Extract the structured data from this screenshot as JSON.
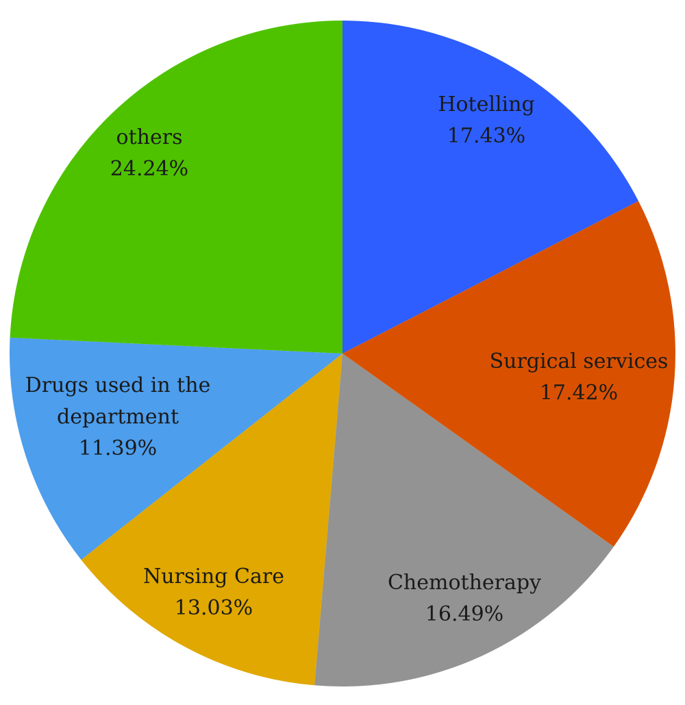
{
  "chart_data": {
    "type": "pie",
    "title": "",
    "slices": [
      {
        "label_lines": [
          "Hotelling"
        ],
        "value": 17.43,
        "value_label": "17.43%",
        "color": "#2e5eff"
      },
      {
        "label_lines": [
          "Surgical services"
        ],
        "value": 17.42,
        "value_label": "17.42%",
        "color": "#d95100"
      },
      {
        "label_lines": [
          "Chemotherapy"
        ],
        "value": 16.49,
        "value_label": "16.49%",
        "color": "#939393"
      },
      {
        "label_lines": [
          "Nursing Care"
        ],
        "value": 13.03,
        "value_label": "13.03%",
        "color": "#e0a800"
      },
      {
        "label_lines": [
          "Drugs used in the",
          "department"
        ],
        "value": 11.39,
        "value_label": "11.39%",
        "color": "#4d9eed"
      },
      {
        "label_lines": [
          "others"
        ],
        "value": 24.24,
        "value_label": "24.24%",
        "color": "#4fc200"
      }
    ],
    "start_angle": "12 o'clock",
    "direction": "clockwise",
    "legend": "none",
    "data_labels": "inside slices"
  }
}
